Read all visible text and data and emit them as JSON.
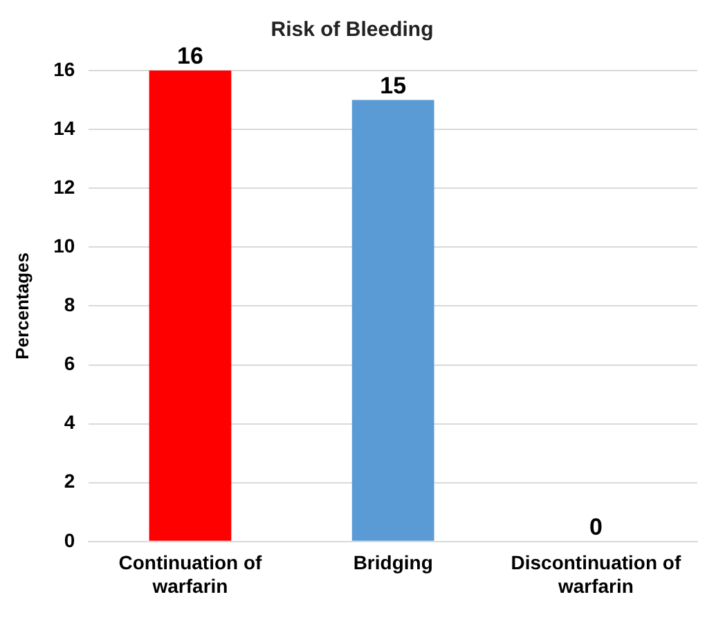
{
  "chart_data": {
    "type": "bar",
    "title": "Risk of Bleeding",
    "ylabel": "Percentages",
    "categories": [
      "Continuation of warfarin",
      "Bridging",
      "Discontinuation of warfarin"
    ],
    "values": [
      16,
      15,
      0
    ],
    "colors": [
      "#ff0000",
      "#5b9bd5",
      "#7f3f00"
    ],
    "ylim": [
      0,
      16
    ],
    "yticks": [
      0,
      2,
      4,
      6,
      8,
      10,
      12,
      14,
      16
    ],
    "grid": "y",
    "data_labels": true,
    "legend": false
  }
}
